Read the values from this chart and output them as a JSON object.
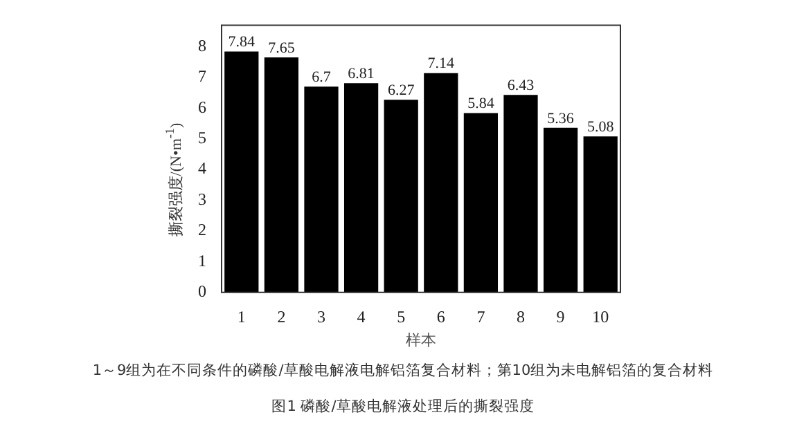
{
  "chart_data": {
    "type": "bar",
    "title": "图1 磷酸/草酸电解液处理后的撕裂强度",
    "annotations": [
      "1～9组为在不同条件的磷酸/草酸电解液电解铝箔复合材料；第10组为未电解铝箔的复合材料"
    ],
    "xlabel": "样本",
    "ylabel": "撕裂强度/(N•m$^{-1}$)",
    "categories": [
      "1",
      "2",
      "3",
      "4",
      "5",
      "6",
      "7",
      "8",
      "9",
      "10"
    ],
    "values": [
      7.84,
      7.65,
      6.7,
      6.81,
      6.27,
      7.14,
      5.84,
      6.43,
      5.36,
      5.08
    ],
    "color": "#000000",
    "ylim": [
      0,
      8.7
    ],
    "yticks": [
      0,
      1,
      2,
      3,
      4,
      5,
      6,
      7,
      8
    ],
    "grid": false,
    "legend": false,
    "data_labels": true
  }
}
